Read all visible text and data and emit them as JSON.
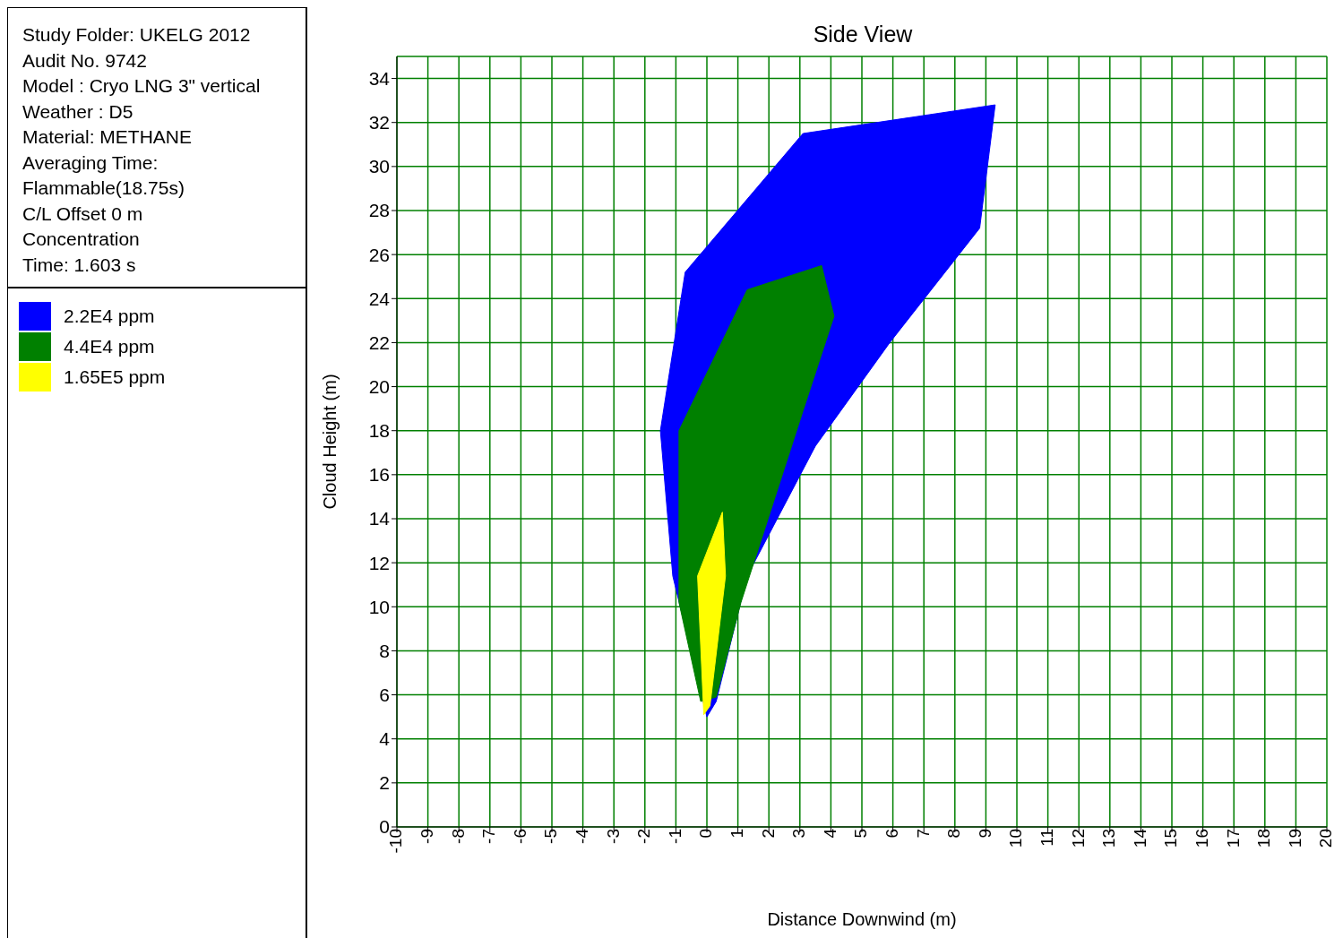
{
  "chart_data": {
    "type": "area",
    "title": "Side View",
    "xlabel": "Distance Downwind (m)",
    "ylabel": "Cloud Height (m)",
    "annotations": [
      "Study Folder: UKELG 2012",
      "Audit No. 9742",
      "Model : Cryo LNG 3\" vertical",
      "Weather : D5",
      "Material: METHANE",
      "Averaging Time:",
      "Flammable(18.75s)",
      "C/L Offset 0 m",
      "Concentration",
      "Time: 1.603 s"
    ],
    "series": [
      {
        "name": "2.2E4 ppm",
        "color": "#0000ff",
        "x": [
          0,
          -1.1,
          -1.5,
          -0.7,
          3.1,
          9.3,
          8.8,
          5.9,
          3.5,
          1.3,
          0.3
        ],
        "values": [
          5,
          11.4,
          18,
          25.2,
          31.5,
          32.8,
          27.2,
          22,
          17.3,
          11.4,
          5.7
        ]
      },
      {
        "name": "4.4E4 ppm",
        "color": "#008000",
        "x": [
          -0.2,
          -0.9,
          -0.9,
          1.3,
          3.7,
          4.1,
          3.1,
          1.1,
          0.3
        ],
        "values": [
          5.7,
          10.2,
          18,
          24.4,
          25.5,
          23.2,
          18.9,
          10.2,
          5.9
        ]
      },
      {
        "name": "1.65E5 ppm",
        "color": "#ffff00",
        "x": [
          -0.1,
          -0.3,
          0.5,
          0.6,
          0.1
        ],
        "values": [
          5.1,
          11.4,
          14.3,
          11.4,
          5.5
        ]
      }
    ],
    "xlim": [
      -10,
      20
    ],
    "xticks": [
      -10,
      -9,
      -8,
      -7,
      -6,
      -5,
      -4,
      -3,
      -2,
      -1,
      0,
      1,
      2,
      3,
      4,
      5,
      6,
      7,
      8,
      9,
      10,
      11,
      12,
      13,
      14,
      15,
      16,
      17,
      18,
      19,
      20
    ],
    "ylim": [
      0,
      35
    ],
    "yticks": [
      0,
      2,
      4,
      6,
      8,
      10,
      12,
      14,
      16,
      18,
      20,
      22,
      24,
      26,
      28,
      30,
      32,
      34
    ],
    "grid": true,
    "legend": "left",
    "marker": "none"
  }
}
